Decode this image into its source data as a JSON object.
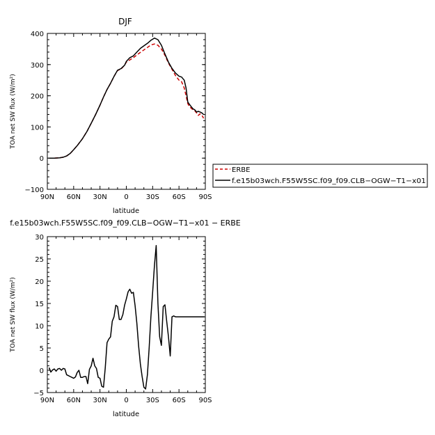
{
  "chart_data": [
    {
      "type": "line",
      "title": "DJF",
      "xlabel": "latitude",
      "ylabel": "TOA net SW flux (W/m²)",
      "xlim": [
        90,
        -90
      ],
      "ylim": [
        -100,
        400
      ],
      "x_ticks": [
        90,
        60,
        30,
        0,
        -30,
        -60,
        -90
      ],
      "x_tick_labels": [
        "90N",
        "60N",
        "30N",
        "0",
        "30S",
        "60S",
        "90S"
      ],
      "y_ticks": [
        -100,
        0,
        100,
        200,
        300,
        400
      ],
      "y_tick_labels": [
        "−100",
        "0",
        "100",
        "200",
        "300",
        "400"
      ],
      "legend_placement": "right",
      "series": [
        {
          "name": "ERBE",
          "color": "#cc0000",
          "dash": "dashed",
          "x": [
            88,
            82,
            76,
            72,
            68,
            64,
            60,
            56,
            50,
            45,
            40,
            35,
            30,
            26,
            22,
            18,
            14,
            10,
            6,
            2,
            0,
            -4,
            -8,
            -12,
            -16,
            -20,
            -24,
            -28,
            -32,
            -36,
            -40,
            -44,
            -48,
            -52,
            -56,
            -60,
            -63,
            -66,
            -68,
            -70,
            -72,
            -74,
            -76,
            -78,
            -80,
            -82,
            -84,
            -86,
            -88
          ],
          "values": [
            0,
            0,
            1,
            3,
            7,
            15,
            27,
            40,
            62,
            85,
            112,
            140,
            170,
            196,
            220,
            240,
            262,
            281,
            286,
            298,
            308,
            315,
            322,
            331,
            339,
            347,
            355,
            363,
            366,
            362,
            350,
            330,
            305,
            285,
            265,
            250,
            245,
            225,
            200,
            175,
            165,
            160,
            155,
            152,
            145,
            137,
            142,
            138,
            128
          ]
        },
        {
          "name": "f.e15b03wch.F55W5SC.f09_f09.CLB−OGW−T1−x01",
          "color": "#000000",
          "dash": "solid",
          "x": [
            88,
            82,
            76,
            72,
            68,
            64,
            60,
            56,
            50,
            45,
            40,
            35,
            30,
            26,
            22,
            18,
            14,
            10,
            6,
            2,
            0,
            -4,
            -8,
            -12,
            -16,
            -20,
            -24,
            -28,
            -32,
            -36,
            -40,
            -44,
            -48,
            -52,
            -56,
            -60,
            -63,
            -66,
            -68,
            -70,
            -72,
            -74,
            -76,
            -78,
            -80,
            -82,
            -84,
            -86,
            -88
          ],
          "values": [
            0,
            0,
            1,
            3,
            7,
            15,
            27,
            40,
            62,
            85,
            112,
            140,
            170,
            196,
            220,
            240,
            262,
            282,
            287,
            298,
            310,
            322,
            328,
            340,
            352,
            360,
            368,
            378,
            385,
            380,
            362,
            334,
            308,
            288,
            273,
            263,
            260,
            250,
            225,
            180,
            172,
            165,
            158,
            155,
            148,
            150,
            148,
            145,
            140
          ]
        }
      ]
    },
    {
      "type": "line",
      "title": "f.e15b03wch.F55W5SC.f09_f09.CLB−OGW−T1−x01 − ERBE",
      "xlabel": "latitude",
      "ylabel": "TOA net SW flux (W/m²)",
      "xlim": [
        90,
        -90
      ],
      "ylim": [
        -5,
        30
      ],
      "x_ticks": [
        90,
        60,
        30,
        0,
        -30,
        -60,
        -90
      ],
      "x_tick_labels": [
        "90N",
        "60N",
        "30N",
        "0",
        "30S",
        "60S",
        "90S"
      ],
      "y_ticks": [
        -5,
        0,
        5,
        10,
        15,
        20,
        25,
        30
      ],
      "y_tick_labels": [
        "−5",
        "0",
        "5",
        "10",
        "15",
        "20",
        "25",
        "30"
      ],
      "series": [
        {
          "color": "#000000",
          "dash": "solid",
          "x": [
            88,
            86,
            84,
            82,
            80,
            78,
            76,
            74,
            72,
            70,
            68,
            66,
            64,
            62,
            60,
            58,
            56,
            54,
            52,
            50,
            48,
            46,
            44,
            42,
            40,
            38,
            36,
            34,
            32,
            30,
            28,
            26,
            24,
            22,
            20,
            18,
            16,
            14,
            12,
            10,
            8,
            6,
            4,
            2,
            0,
            -2,
            -4,
            -6,
            -8,
            -10,
            -12,
            -14,
            -16,
            -18,
            -20,
            -22,
            -24,
            -26,
            -28,
            -30,
            -32,
            -34,
            -36,
            -38,
            -40,
            -42,
            -44,
            -46,
            -48,
            -50,
            -52,
            -54,
            -56,
            -58,
            -60,
            -62,
            -64,
            -66,
            -68,
            -70,
            -72,
            -74,
            -76,
            -78,
            -80,
            -82,
            -84,
            -86,
            -88,
            -89
          ],
          "values": [
            0.6,
            -0.4,
            0.1,
            0.3,
            -0.2,
            0.3,
            0.4,
            0.0,
            0.4,
            0.3,
            -1.0,
            -1.2,
            -1.4,
            -1.6,
            -1.8,
            -1.5,
            -0.5,
            0.0,
            -1.6,
            -1.6,
            -1.4,
            -1.4,
            -3.0,
            0.2,
            1.0,
            2.7,
            1.0,
            0.4,
            -1.6,
            -1.8,
            -3.6,
            -3.8,
            0.5,
            6.2,
            7.0,
            7.5,
            11.0,
            12.0,
            14.6,
            14.3,
            11.4,
            11.4,
            12.5,
            14.6,
            16.0,
            17.6,
            18.2,
            17.3,
            17.5,
            14.5,
            10.6,
            5.4,
            1.4,
            -1.4,
            -3.8,
            -4.2,
            -1.0,
            5.0,
            12.0,
            17.5,
            23.5,
            28.0,
            15.0,
            7.5,
            5.6,
            14.3,
            14.7,
            11.0,
            7.6,
            3.2,
            12.0,
            12.2,
            12.0,
            12.0,
            12.0,
            12.0,
            12.0,
            12.0,
            12.0,
            12.0,
            12.0,
            12.0,
            12.0,
            12.0,
            12.0,
            12.0,
            12.0,
            12.0,
            12.0,
            12.0
          ]
        }
      ]
    }
  ],
  "legend": {
    "items": [
      {
        "label": "ERBE",
        "color": "#cc0000",
        "dash": "dashed"
      },
      {
        "label": "f.e15b03wch.F55W5SC.f09_f09.CLB−OGW−T1−x01",
        "color": "#000000",
        "dash": "solid"
      }
    ]
  }
}
